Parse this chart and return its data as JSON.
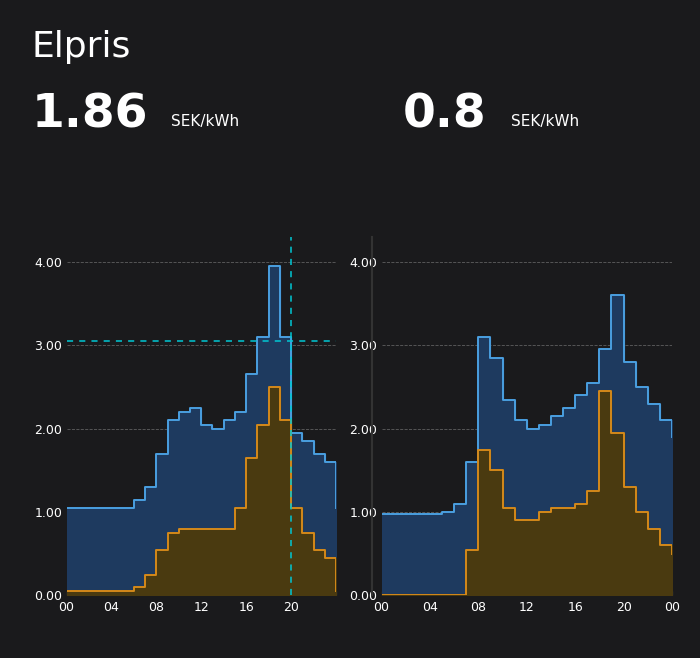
{
  "title": "Elpris",
  "price_left_big": "1.86",
  "price_left_unit": "SEK/kWh",
  "price_right_big": "0.8",
  "price_right_unit": "SEK/kWh",
  "bg_color": "#1a1a1c",
  "blue_color": "#4a9fe0",
  "orange_color": "#d4891a",
  "blue_fill": "#1e3a5f",
  "orange_fill": "#4a3a10",
  "cyan_dashed": "#00c8d4",
  "text_color": "#ffffff",
  "grid_color": "#555555",
  "hours": [
    0,
    1,
    2,
    3,
    4,
    5,
    6,
    7,
    8,
    9,
    10,
    11,
    12,
    13,
    14,
    15,
    16,
    17,
    18,
    19,
    20,
    21,
    22,
    23,
    24
  ],
  "day_blue": [
    1.05,
    1.05,
    1.05,
    1.05,
    1.05,
    1.05,
    1.15,
    1.3,
    1.7,
    2.1,
    2.2,
    2.25,
    2.05,
    2.0,
    2.1,
    2.2,
    2.65,
    3.1,
    3.95,
    3.1,
    1.95,
    1.85,
    1.7,
    1.6,
    1.05
  ],
  "day_orange": [
    0.05,
    0.05,
    0.05,
    0.05,
    0.05,
    0.05,
    0.1,
    0.25,
    0.55,
    0.75,
    0.8,
    0.8,
    0.8,
    0.8,
    0.8,
    1.05,
    1.65,
    2.05,
    2.5,
    2.1,
    1.05,
    0.75,
    0.55,
    0.45,
    0.05
  ],
  "night_blue": [
    0.98,
    0.98,
    0.98,
    0.98,
    0.98,
    1.0,
    1.1,
    1.6,
    3.1,
    2.85,
    2.35,
    2.1,
    2.0,
    2.05,
    2.15,
    2.25,
    2.4,
    2.55,
    2.95,
    3.6,
    2.8,
    2.5,
    2.3,
    2.1,
    1.9
  ],
  "night_orange": [
    0.0,
    0.0,
    0.0,
    0.0,
    0.0,
    0.0,
    0.0,
    0.55,
    1.75,
    1.5,
    1.05,
    0.9,
    0.9,
    1.0,
    1.05,
    1.05,
    1.1,
    1.25,
    2.45,
    1.95,
    1.3,
    1.0,
    0.8,
    0.6,
    0.5
  ],
  "ylim": [
    0.0,
    4.3
  ],
  "yticks": [
    0.0,
    1.0,
    2.0,
    3.0,
    4.0
  ],
  "xticks": [
    0,
    4,
    8,
    12,
    16,
    20,
    24
  ],
  "xtick_labels_day": [
    "00",
    "04",
    "08",
    "12",
    "16",
    "20",
    ""
  ],
  "xtick_labels_night": [
    "00",
    "04",
    "08",
    "12",
    "16",
    "20",
    "00"
  ],
  "cursor_x_day": 20,
  "cursor_y_day": 3.05,
  "separator_x": 24
}
